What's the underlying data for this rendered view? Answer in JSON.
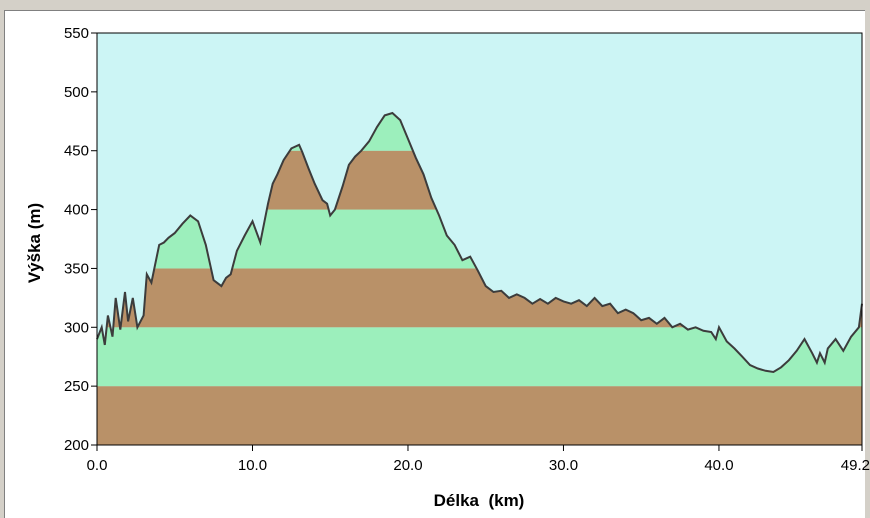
{
  "chart_data": {
    "type": "area",
    "title": "",
    "xlabel": "Délka  (km)",
    "ylabel": "Výška (m)",
    "xlim": [
      0,
      49.2
    ],
    "ylim": [
      200,
      550
    ],
    "x_ticks": [
      0,
      10,
      20,
      30,
      40,
      49.2
    ],
    "x_tick_labels": [
      "0.0",
      "10.0",
      "20.0",
      "30.0",
      "40.0",
      "49.2"
    ],
    "y_ticks": [
      200,
      250,
      300,
      350,
      400,
      450,
      500,
      550
    ],
    "y_tick_labels": [
      "200",
      "250",
      "300",
      "350",
      "400",
      "450",
      "500",
      "550"
    ],
    "grid": false,
    "band_step": 50,
    "colors": {
      "sky": "#ccf5f5",
      "band_brown": "#b99168",
      "band_green": "#9cefbc",
      "line": "#3c3c3c"
    },
    "series": [
      {
        "x": [
          0,
          0.3,
          0.5,
          0.7,
          1.0,
          1.2,
          1.5,
          1.8,
          2.0,
          2.3,
          2.6,
          3.0,
          3.2,
          3.5,
          4.0,
          4.3,
          4.6,
          5.0,
          5.5,
          6.0,
          6.2,
          6.5,
          7.0,
          7.5,
          8.0,
          8.3,
          8.6,
          9.0,
          9.5,
          10.0,
          10.5,
          11.0,
          11.3,
          11.6,
          12.0,
          12.5,
          13.0,
          13.2,
          13.6,
          14.0,
          14.5,
          14.8,
          15.0,
          15.3,
          15.8,
          16.2,
          16.6,
          17.0,
          17.5,
          18.0,
          18.5,
          19.0,
          19.5,
          20.0,
          20.5,
          21.0,
          21.5,
          22.0,
          22.5,
          23.0,
          23.5,
          24.0,
          24.5,
          25.0,
          25.5,
          26.0,
          26.5,
          27.0,
          27.5,
          28.0,
          28.5,
          29.0,
          29.5,
          30.0,
          30.5,
          31.0,
          31.5,
          32.0,
          32.5,
          33.0,
          33.5,
          34.0,
          34.5,
          35.0,
          35.5,
          36.0,
          36.5,
          37.0,
          37.5,
          38.0,
          38.5,
          39.0,
          39.5,
          39.8,
          40.0,
          40.5,
          41.0,
          41.5,
          42.0,
          42.5,
          43.0,
          43.5,
          44.0,
          44.5,
          45.0,
          45.5,
          46.0,
          46.3,
          46.5,
          46.8,
          47.0,
          47.5,
          48.0,
          48.5,
          49.0,
          49.2
        ],
        "y": [
          290,
          300,
          285,
          310,
          292,
          325,
          298,
          330,
          305,
          325,
          300,
          310,
          345,
          338,
          370,
          372,
          376,
          380,
          388,
          395,
          393,
          390,
          370,
          340,
          335,
          342,
          345,
          365,
          378,
          390,
          372,
          405,
          422,
          430,
          442,
          452,
          455,
          449,
          435,
          422,
          408,
          405,
          395,
          400,
          420,
          438,
          445,
          450,
          458,
          470,
          480,
          482,
          476,
          460,
          444,
          430,
          410,
          395,
          378,
          370,
          357,
          360,
          348,
          335,
          330,
          331,
          325,
          328,
          325,
          320,
          324,
          320,
          325,
          322,
          320,
          323,
          318,
          325,
          318,
          320,
          312,
          315,
          312,
          306,
          308,
          303,
          308,
          300,
          303,
          298,
          300,
          297,
          296,
          290,
          300,
          288,
          282,
          275,
          268,
          265,
          263,
          262,
          266,
          272,
          280,
          290,
          278,
          270,
          278,
          270,
          282,
          290,
          280,
          292,
          300,
          320
        ]
      }
    ]
  }
}
